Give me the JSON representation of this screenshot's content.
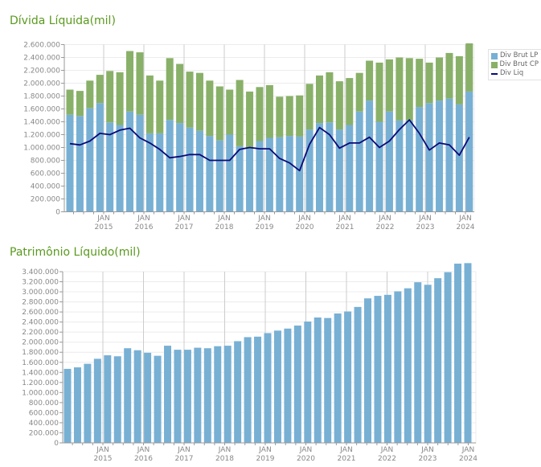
{
  "colors": {
    "title": "#5a9a1e",
    "lp": "#78b0d4",
    "cp": "#89b068",
    "liq": "#0a0a78",
    "pl": "#78b0d4"
  },
  "chart_data": [
    {
      "type": "bar",
      "stacked": true,
      "title": "Dívida Líquida(mil)",
      "xlabel": "",
      "ylabel": "",
      "ylim": [
        0,
        2600000
      ],
      "yticks": [
        "0",
        "200.000",
        "400.000",
        "600.000",
        "800.000",
        "1.000.000",
        "1.200.000",
        "1.400.000",
        "1.600.000",
        "1.800.000",
        "2.000.000",
        "2.200.000",
        "2.400.000",
        "2.600.000"
      ],
      "xticks": [
        {
          "top": "JAN",
          "bottom": "2015"
        },
        {
          "top": "JAN",
          "bottom": "2016"
        },
        {
          "top": "JAN",
          "bottom": "2017"
        },
        {
          "top": "JAN",
          "bottom": "2018"
        },
        {
          "top": "JAN",
          "bottom": "2019"
        },
        {
          "top": "JAN",
          "bottom": "2020"
        },
        {
          "top": "JAN",
          "bottom": "2021"
        },
        {
          "top": "JAN",
          "bottom": "2022"
        },
        {
          "top": "JAN",
          "bottom": "2023"
        },
        {
          "top": "JAN",
          "bottom": "2024"
        }
      ],
      "grid": true,
      "legend_position": "right",
      "categories": [
        "2014Q1",
        "2014Q2",
        "2014Q3",
        "2014Q4",
        "2015Q1",
        "2015Q2",
        "2015Q3",
        "2015Q4",
        "2016Q1",
        "2016Q2",
        "2016Q3",
        "2016Q4",
        "2017Q1",
        "2017Q2",
        "2017Q3",
        "2017Q4",
        "2018Q1",
        "2018Q2",
        "2018Q3",
        "2018Q4",
        "2019Q1",
        "2019Q2",
        "2019Q3",
        "2019Q4",
        "2020Q1",
        "2020Q2",
        "2020Q3",
        "2020Q4",
        "2021Q1",
        "2021Q2",
        "2021Q3",
        "2021Q4",
        "2022Q1",
        "2022Q2",
        "2022Q3",
        "2022Q4",
        "2023Q1",
        "2023Q2",
        "2023Q3",
        "2023Q4",
        "2024Q1"
      ],
      "series": [
        {
          "name": "Div Brut LP",
          "type": "bar",
          "values": [
            1510000,
            1490000,
            1610000,
            1690000,
            1390000,
            1350000,
            1560000,
            1510000,
            1220000,
            1220000,
            1430000,
            1380000,
            1310000,
            1260000,
            1180000,
            1110000,
            1200000,
            1020000,
            1000000,
            1100000,
            1150000,
            1160000,
            1180000,
            1170000,
            1280000,
            1380000,
            1390000,
            1280000,
            1350000,
            1560000,
            1730000,
            1400000,
            1560000,
            1420000,
            1420000,
            1630000,
            1690000,
            1730000,
            1760000,
            1670000,
            1870000
          ]
        },
        {
          "name": "Div Brut CP",
          "type": "bar",
          "values": [
            390000,
            390000,
            430000,
            440000,
            800000,
            820000,
            940000,
            970000,
            900000,
            820000,
            960000,
            920000,
            870000,
            900000,
            860000,
            840000,
            700000,
            1030000,
            870000,
            840000,
            820000,
            630000,
            620000,
            640000,
            710000,
            740000,
            780000,
            750000,
            730000,
            600000,
            620000,
            920000,
            810000,
            980000,
            970000,
            750000,
            630000,
            670000,
            710000,
            750000,
            750000
          ]
        },
        {
          "name": "Div Liq",
          "type": "line",
          "values": [
            1060000,
            1040000,
            1100000,
            1220000,
            1200000,
            1270000,
            1300000,
            1150000,
            1070000,
            970000,
            840000,
            860000,
            890000,
            890000,
            800000,
            800000,
            800000,
            970000,
            1000000,
            980000,
            980000,
            830000,
            760000,
            640000,
            1050000,
            1310000,
            1200000,
            990000,
            1070000,
            1070000,
            1160000,
            1000000,
            1100000,
            1280000,
            1430000,
            1220000,
            960000,
            1070000,
            1040000,
            880000,
            1160000
          ]
        }
      ]
    },
    {
      "type": "bar",
      "title": "Patrimônio Líquido(mil)",
      "xlabel": "",
      "ylabel": "",
      "ylim": [
        0,
        3400000
      ],
      "yticks": [
        "0",
        "200.000",
        "400.000",
        "600.000",
        "800.000",
        "1.000.000",
        "1.200.000",
        "1.400.000",
        "1.600.000",
        "1.800.000",
        "2.000.000",
        "2.200.000",
        "2.400.000",
        "2.600.000",
        "2.800.000",
        "3.000.000",
        "3.200.000",
        "3.400.000"
      ],
      "xticks": [
        {
          "top": "JAN",
          "bottom": "2015"
        },
        {
          "top": "JAN",
          "bottom": "2016"
        },
        {
          "top": "JAN",
          "bottom": "2017"
        },
        {
          "top": "JAN",
          "bottom": "2018"
        },
        {
          "top": "JAN",
          "bottom": "2019"
        },
        {
          "top": "JAN",
          "bottom": "2020"
        },
        {
          "top": "JAN",
          "bottom": "2021"
        },
        {
          "top": "JAN",
          "bottom": "2022"
        },
        {
          "top": "JAN",
          "bottom": "2023"
        },
        {
          "top": "JAN",
          "bottom": "2024"
        }
      ],
      "grid": true,
      "categories": [
        "2014Q1",
        "2014Q2",
        "2014Q3",
        "2014Q4",
        "2015Q1",
        "2015Q2",
        "2015Q3",
        "2015Q4",
        "2016Q1",
        "2016Q2",
        "2016Q3",
        "2016Q4",
        "2017Q1",
        "2017Q2",
        "2017Q3",
        "2017Q4",
        "2018Q1",
        "2018Q2",
        "2018Q3",
        "2018Q4",
        "2019Q1",
        "2019Q2",
        "2019Q3",
        "2019Q4",
        "2020Q1",
        "2020Q2",
        "2020Q3",
        "2020Q4",
        "2021Q1",
        "2021Q2",
        "2021Q3",
        "2021Q4",
        "2022Q1",
        "2022Q2",
        "2022Q3",
        "2022Q4",
        "2023Q1",
        "2023Q2",
        "2023Q3",
        "2023Q4",
        "2024Q1"
      ],
      "series": [
        {
          "name": "Patrimônio Líquido",
          "type": "bar",
          "values": [
            1470000,
            1500000,
            1570000,
            1670000,
            1740000,
            1720000,
            1880000,
            1840000,
            1790000,
            1730000,
            1930000,
            1850000,
            1850000,
            1890000,
            1880000,
            1920000,
            1930000,
            2020000,
            2100000,
            2110000,
            2180000,
            2230000,
            2270000,
            2330000,
            2410000,
            2490000,
            2480000,
            2570000,
            2610000,
            2700000,
            2870000,
            2920000,
            2940000,
            3010000,
            3070000,
            3190000,
            3140000,
            3270000,
            3390000,
            3560000,
            3570000
          ]
        }
      ]
    }
  ]
}
